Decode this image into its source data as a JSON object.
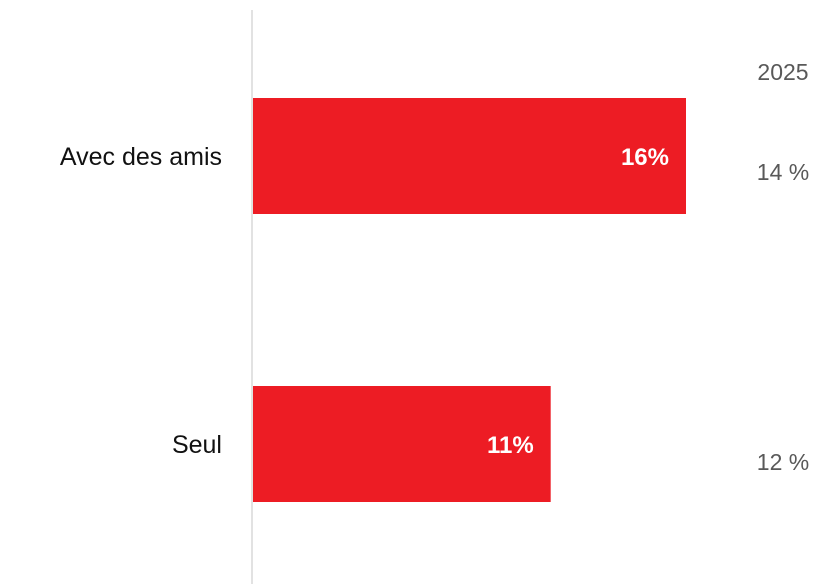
{
  "chart_data": {
    "type": "bar",
    "orientation": "horizontal",
    "categories": [
      "Avec des amis",
      "Seul"
    ],
    "series": [
      {
        "values": [
          16,
          11
        ],
        "value_labels": [
          "16%",
          "11%"
        ],
        "color": "#ed1c24"
      }
    ],
    "xlim": [
      0,
      18.4
    ],
    "comparison": {
      "heading": "2025",
      "labels": [
        "14 %",
        "12 %"
      ]
    },
    "grid": false,
    "legend": "none",
    "colors": {
      "bar": "#ed1c24",
      "axis": "#d9d9d9",
      "comparison_text": "#595959",
      "category_text": "#111111",
      "bar_label_text": "#ffffff"
    }
  }
}
